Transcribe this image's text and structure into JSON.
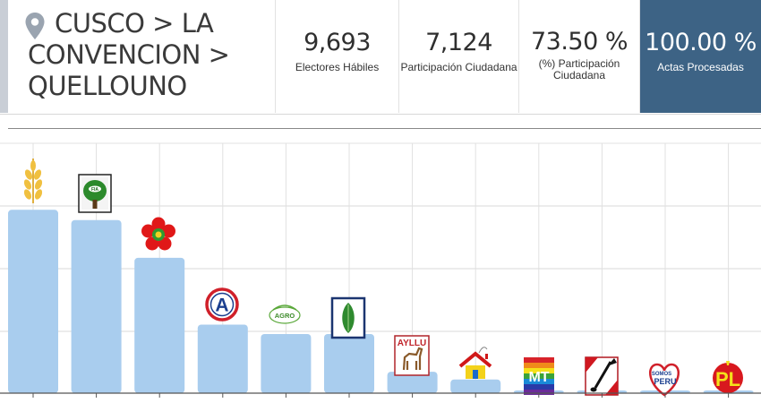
{
  "location": {
    "line1": "CUSCO > LA",
    "line2": "CONVENCION >",
    "line3": "QUELLOUNO",
    "icon": "location-pin-icon"
  },
  "stats": {
    "electores": {
      "value": "9,693",
      "label": "Electores Hábiles"
    },
    "participacion": {
      "value": "7,124",
      "label": "Participación Ciudadana"
    },
    "porcentaje": {
      "value": "73.50 %",
      "label_line1": "(%) Participación",
      "label_line2": "Ciudadana"
    },
    "actas": {
      "value": "100.00 %",
      "label": "Actas Procesadas"
    }
  },
  "colors": {
    "bar": "#a9cdee",
    "accent": "#3d6385",
    "sidebar": "#c9ced6"
  },
  "chart_data": {
    "type": "bar",
    "categories": [
      "wheat-logo",
      "tree-logo",
      "red-flower-logo",
      "a-circle-logo",
      "agro-logo",
      "green-leaf-logo",
      "ayllu-logo",
      "house-logo",
      "mt-rainbow-logo",
      "shovel-flag-logo",
      "somos-peru-logo",
      "pl-pencil-logo"
    ],
    "logo_texts": {
      "ayllu": "AYLLU",
      "agro": "AGRO",
      "mt": "MT",
      "somos": "SOMOS",
      "peru": "PERU",
      "pl": "PL",
      "a": "A"
    },
    "values": [
      214,
      202,
      158,
      80,
      69,
      69,
      25,
      16,
      1,
      1,
      1,
      1
    ],
    "ylim": [
      0,
      300
    ],
    "grid": true
  }
}
